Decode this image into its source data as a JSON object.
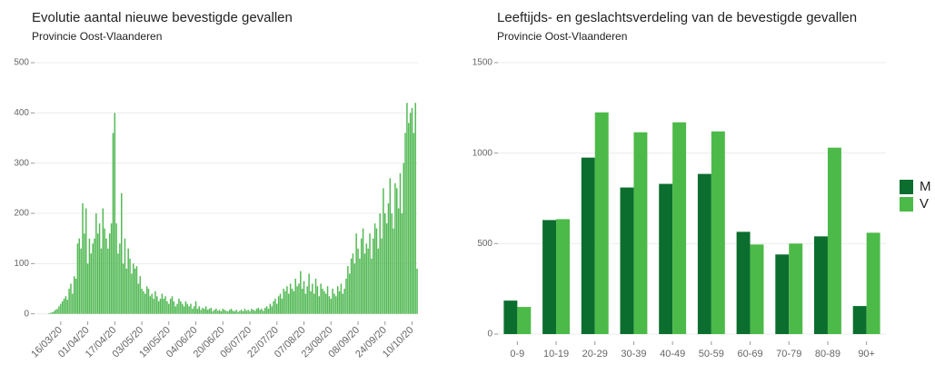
{
  "chart_data": [
    {
      "type": "bar",
      "title": "Evolutie aantal nieuwe bevestigde gevallen",
      "subtitle": "Provincie Oost-Vlaanderen",
      "color": "#52b954",
      "categories": [
        null,
        null,
        null,
        null,
        null,
        null,
        null,
        null,
        null,
        null,
        null,
        null,
        null,
        null,
        null,
        "16/03/20",
        null,
        null,
        null,
        null,
        null,
        null,
        null,
        null,
        null,
        null,
        null,
        null,
        null,
        null,
        null,
        "01/04/20",
        null,
        null,
        null,
        null,
        null,
        null,
        null,
        null,
        null,
        null,
        null,
        null,
        null,
        null,
        null,
        "17/04/20",
        null,
        null,
        null,
        null,
        null,
        null,
        null,
        null,
        null,
        null,
        null,
        null,
        null,
        null,
        null,
        "03/05/20",
        null,
        null,
        null,
        null,
        null,
        null,
        null,
        null,
        null,
        null,
        null,
        null,
        null,
        null,
        null,
        "19/05/20",
        null,
        null,
        null,
        null,
        null,
        null,
        null,
        null,
        null,
        null,
        null,
        null,
        null,
        null,
        null,
        "04/06/20",
        null,
        null,
        null,
        null,
        null,
        null,
        null,
        null,
        null,
        null,
        null,
        null,
        null,
        null,
        null,
        "20/06/20",
        null,
        null,
        null,
        null,
        null,
        null,
        null,
        null,
        null,
        null,
        null,
        null,
        null,
        null,
        null,
        "06/07/20",
        null,
        null,
        null,
        null,
        null,
        null,
        null,
        null,
        null,
        null,
        null,
        null,
        null,
        null,
        null,
        "22/07/20",
        null,
        null,
        null,
        null,
        null,
        null,
        null,
        null,
        null,
        null,
        null,
        null,
        null,
        null,
        null,
        "07/08/20",
        null,
        null,
        null,
        null,
        null,
        null,
        null,
        null,
        null,
        null,
        null,
        null,
        null,
        null,
        null,
        "23/08/20",
        null,
        null,
        null,
        null,
        null,
        null,
        null,
        null,
        null,
        null,
        null,
        null,
        null,
        null,
        null,
        "08/09/20",
        null,
        null,
        null,
        null,
        null,
        null,
        null,
        null,
        null,
        null,
        null,
        null,
        null,
        null,
        null,
        "24/09/20",
        null,
        null,
        null,
        null,
        null,
        null,
        null,
        null,
        null,
        null,
        null,
        null,
        null,
        null,
        null,
        "10/10/20",
        null,
        null,
        null
      ],
      "values": [
        0,
        0,
        0,
        0,
        0,
        0,
        0,
        0,
        1,
        2,
        3,
        5,
        8,
        10,
        15,
        20,
        25,
        30,
        35,
        28,
        50,
        60,
        40,
        75,
        70,
        140,
        150,
        130,
        220,
        160,
        210,
        100,
        150,
        120,
        140,
        150,
        200,
        160,
        180,
        130,
        210,
        170,
        150,
        130,
        160,
        180,
        360,
        400,
        180,
        120,
        140,
        240,
        100,
        150,
        90,
        130,
        110,
        80,
        100,
        90,
        95,
        60,
        75,
        50,
        45,
        40,
        55,
        50,
        35,
        40,
        30,
        45,
        35,
        25,
        30,
        40,
        30,
        35,
        25,
        20,
        30,
        35,
        25,
        15,
        20,
        30,
        25,
        20,
        15,
        25,
        20,
        15,
        20,
        10,
        15,
        25,
        10,
        15,
        8,
        12,
        10,
        15,
        8,
        10,
        12,
        5,
        8,
        10,
        6,
        8,
        5,
        10,
        8,
        6,
        5,
        8,
        10,
        6,
        5,
        8,
        4,
        6,
        8,
        5,
        10,
        6,
        8,
        5,
        10,
        8,
        6,
        10,
        12,
        8,
        10,
        6,
        12,
        15,
        10,
        20,
        15,
        25,
        30,
        20,
        35,
        40,
        30,
        50,
        45,
        55,
        40,
        60,
        50,
        45,
        70,
        55,
        60,
        85,
        50,
        65,
        40,
        55,
        80,
        45,
        60,
        40,
        70,
        55,
        35,
        60,
        50,
        45,
        40,
        55,
        35,
        30,
        50,
        40,
        35,
        55,
        45,
        60,
        40,
        50,
        70,
        95,
        80,
        110,
        120,
        100,
        160,
        130,
        110,
        150,
        170,
        120,
        140,
        130,
        160,
        110,
        150,
        180,
        170,
        130,
        200,
        150,
        250,
        200,
        180,
        220,
        270,
        200,
        170,
        260,
        250,
        210,
        280,
        200,
        300,
        360,
        420,
        380,
        400,
        410,
        360,
        420,
        90
      ],
      "ylim": [
        -15,
        520
      ],
      "yticks": [
        0,
        100,
        200,
        300,
        400,
        500
      ],
      "grid": true
    },
    {
      "type": "grouped-bar",
      "title": "Leeftijds- en geslachtsverdeling van de bevestigde gevallen",
      "subtitle": "Provincie Oost-Vlaanderen",
      "categories": [
        "0-9",
        "10-19",
        "20-29",
        "30-39",
        "40-49",
        "50-59",
        "60-69",
        "70-79",
        "80-89",
        "90+"
      ],
      "series": [
        {
          "name": "M",
          "color": "#0b6e2f",
          "values": [
            185,
            630,
            975,
            810,
            830,
            885,
            565,
            440,
            540,
            155
          ]
        },
        {
          "name": "V",
          "color": "#4cba48",
          "values": [
            150,
            635,
            1225,
            1115,
            1170,
            1120,
            495,
            500,
            1030,
            560
          ]
        }
      ],
      "ylim": [
        -40,
        1545
      ],
      "yticks": [
        0,
        500,
        1000,
        1500
      ],
      "grid": true,
      "legend": "right"
    }
  ]
}
